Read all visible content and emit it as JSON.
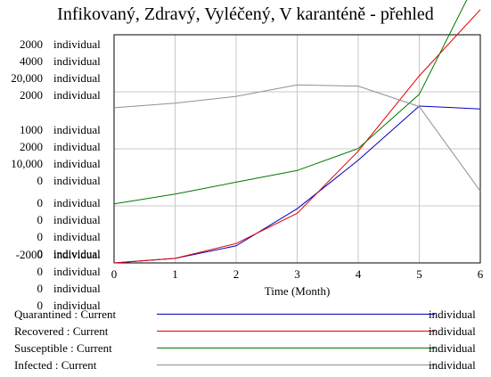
{
  "chart_data": {
    "type": "line",
    "title": "Infikovaný, Zdravý, Vyléčený, V karanténě - přehled",
    "xlabel": "Time (Month)",
    "x": [
      0,
      1,
      2,
      3,
      4,
      5,
      6
    ],
    "x_ticks": [
      "0",
      "1",
      "2",
      "3",
      "4",
      "5",
      "6"
    ],
    "xlim": [
      0,
      6
    ],
    "grid": true,
    "axes": [
      {
        "series": "Quarantined",
        "ticks": [
          "2000",
          "1000",
          "0",
          "-2000"
        ],
        "unit": "individual"
      },
      {
        "series": "Recovered",
        "ticks": [
          "4000",
          "2000",
          "0",
          "0"
        ],
        "unit": "individual"
      },
      {
        "series": "Susceptible",
        "ticks": [
          "20,000",
          "10,000",
          "0",
          "0"
        ],
        "unit": "individual"
      },
      {
        "series": "Infected",
        "ticks": [
          "2000",
          "0",
          "0",
          "0"
        ],
        "unit": "individual"
      }
    ],
    "series": [
      {
        "name": "Quarantined",
        "color": "#0000c0",
        "ylim": [
          -2000,
          2000
        ],
        "values": [
          -2000,
          -1920,
          -1700,
          -1050,
          -200,
          750,
          700
        ]
      },
      {
        "name": "Recovered",
        "color": "#e00000",
        "ylim": [
          0,
          4000
        ],
        "values": [
          0,
          80,
          340,
          870,
          1960,
          3280,
          4440
        ]
      },
      {
        "name": "Susceptible",
        "color": "#007800",
        "ylim": [
          0,
          20000
        ],
        "values": [
          5180,
          6030,
          7080,
          8100,
          10030,
          14780,
          25420
        ]
      },
      {
        "name": "Infected",
        "color": "#909090",
        "ylim": [
          0,
          2000
        ],
        "values": [
          1360,
          1400,
          1460,
          1560,
          1550,
          1370,
          630
        ]
      }
    ],
    "legend": [
      {
        "label": "Quarantined : Current",
        "unit": "individual",
        "color": "#0000c0"
      },
      {
        "label": "Recovered : Current",
        "unit": "individual",
        "color": "#e00000"
      },
      {
        "label": "Susceptible : Current",
        "unit": "individual",
        "color": "#007800"
      },
      {
        "label": "Infected : Current",
        "unit": "individual",
        "color": "#909090"
      }
    ]
  }
}
